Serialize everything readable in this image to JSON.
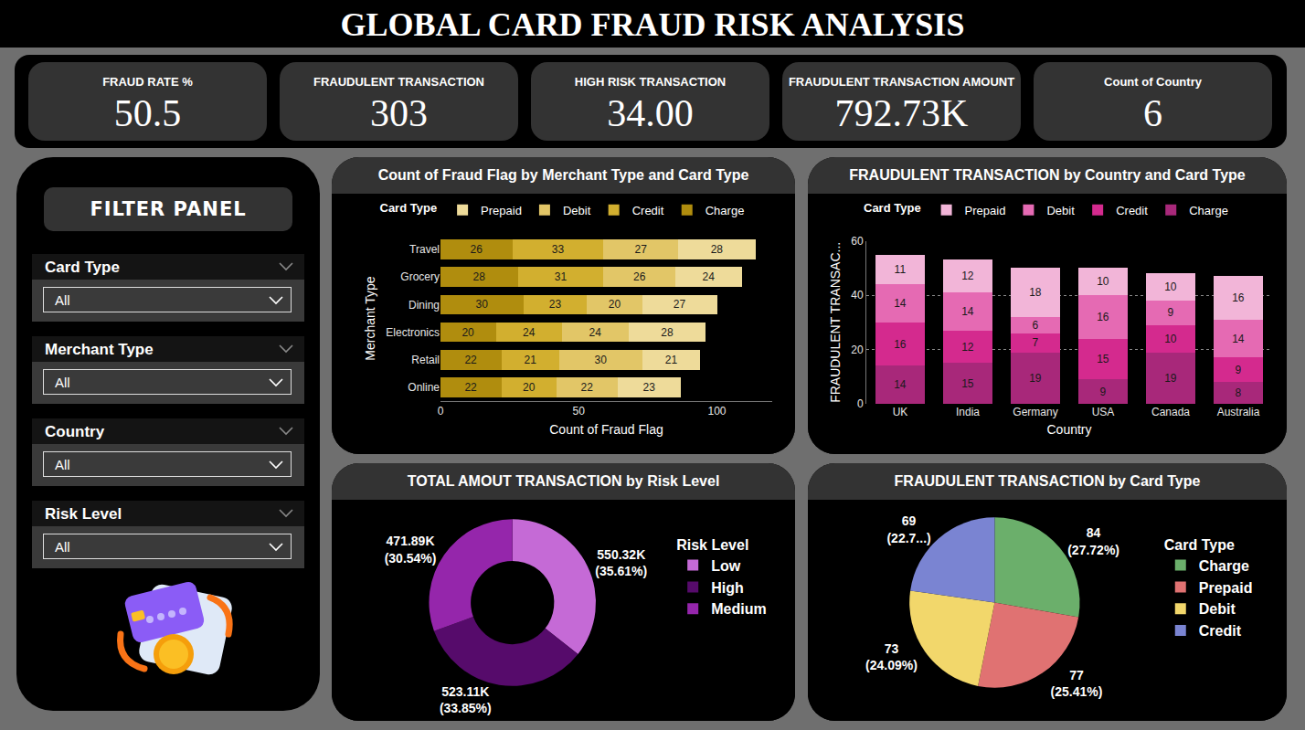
{
  "title": "GLOBAL CARD FRAUD RISK ANALYSIS",
  "kpis": [
    {
      "label": "FRAUD RATE %",
      "value": "50.5"
    },
    {
      "label": "FRAUDULENT TRANSACTION",
      "value": "303"
    },
    {
      "label": "HIGH RISK TRANSACTION",
      "value": "34.00"
    },
    {
      "label": "FRAUDULENT TRANSACTION AMOUNT",
      "value": "792.73K"
    },
    {
      "label": "Count of Country",
      "value": "6"
    }
  ],
  "filter_panel": {
    "title": "FILTER PANEL",
    "filters": [
      {
        "label": "Card Type",
        "value": "All"
      },
      {
        "label": "Merchant Type",
        "value": "All"
      },
      {
        "label": "Country",
        "value": "All"
      },
      {
        "label": "Risk Level",
        "value": "All"
      }
    ]
  },
  "chart_data": [
    {
      "type": "bar",
      "title": "Count of Fraud Flag by Merchant Type and Card Type",
      "orientation": "horizontal",
      "stacked": true,
      "data_labels": true,
      "grid": false,
      "legend": "top",
      "legend_title": "Card Type",
      "x_label": "Count of Fraud Flag",
      "y_label": "Merchant Type",
      "categories": [
        "Travel",
        "Grocery",
        "Dining",
        "Electronics",
        "Retail",
        "Online"
      ],
      "series": [
        {
          "name": "Charge",
          "color": "#B08D0E",
          "values": [
            26,
            28,
            30,
            20,
            22,
            22
          ]
        },
        {
          "name": "Credit",
          "color": "#D2AF2F",
          "values": [
            33,
            31,
            23,
            24,
            21,
            20
          ]
        },
        {
          "name": "Debit",
          "color": "#E2C667",
          "values": [
            27,
            26,
            20,
            24,
            30,
            22
          ]
        },
        {
          "name": "Prepaid",
          "color": "#EEDB9A",
          "values": [
            28,
            24,
            27,
            28,
            21,
            23
          ]
        }
      ],
      "xlim": [
        0,
        120
      ],
      "xticks": [
        0,
        50,
        100
      ]
    },
    {
      "type": "bar",
      "title": "FRAUDULENT TRANSACTION by Country and Card Type",
      "stacked": true,
      "data_labels": true,
      "grid": true,
      "legend": "top",
      "legend_title": "Card Type",
      "x_label": "Country",
      "y_label": "FRAUDULENT TRANSAC...",
      "categories": [
        "UK",
        "India",
        "Germany",
        "USA",
        "Canada",
        "Australia"
      ],
      "series": [
        {
          "name": "Charge",
          "color": "#A8287A",
          "values": [
            14,
            15,
            19,
            9,
            19,
            8
          ]
        },
        {
          "name": "Credit",
          "color": "#D42A8E",
          "values": [
            16,
            12,
            7,
            15,
            10,
            9
          ]
        },
        {
          "name": "Debit",
          "color": "#E56AB3",
          "values": [
            14,
            14,
            6,
            16,
            9,
            14
          ]
        },
        {
          "name": "Prepaid",
          "color": "#F2B5D8",
          "values": [
            11,
            12,
            18,
            10,
            10,
            16
          ]
        }
      ],
      "ylim": [
        0,
        60
      ],
      "yticks": [
        0,
        20,
        40,
        60
      ]
    },
    {
      "type": "donut",
      "title": "TOTAL AMOUT TRANSACTION by Risk Level",
      "legend": "right",
      "legend_title": "Risk Level",
      "data_labels": true,
      "categories": [
        "Low",
        "High",
        "Medium"
      ],
      "values": [
        550320,
        523110,
        471890
      ],
      "value_labels": [
        "550.32K (35.61%)",
        "523.11K (33.85%)",
        "471.89K (30.54%)"
      ],
      "colors": [
        "#C56AD6",
        "#560B6B",
        "#9526AB"
      ]
    },
    {
      "type": "pie",
      "title": "FRAUDULENT TRANSACTION by Card Type",
      "legend": "right",
      "legend_title": "Card Type",
      "data_labels": true,
      "categories": [
        "Charge",
        "Prepaid",
        "Debit",
        "Credit"
      ],
      "values": [
        84,
        77,
        73,
        69
      ],
      "value_labels": [
        "84 (27.72%)",
        "77 (25.41%)",
        "73 (24.09%)",
        "69 (22.7...)"
      ],
      "colors": [
        "#6BAF6B",
        "#E07272",
        "#F2D76B",
        "#7A84D2"
      ]
    }
  ]
}
